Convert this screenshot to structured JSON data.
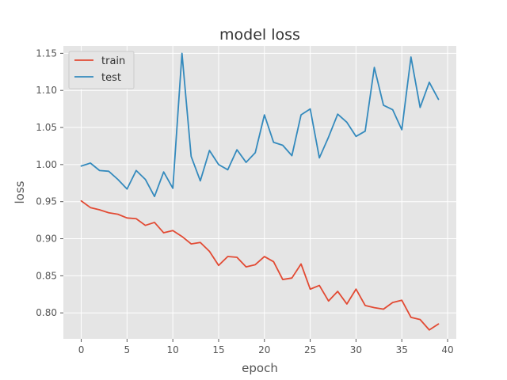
{
  "chart_data": {
    "type": "line",
    "title": "model loss",
    "xlabel": "epoch",
    "ylabel": "loss",
    "xlim": [
      -1.95,
      40.95
    ],
    "ylim": [
      0.765,
      1.16
    ],
    "xticks": [
      0,
      5,
      10,
      15,
      20,
      25,
      30,
      35,
      40
    ],
    "yticks": [
      0.8,
      0.85,
      0.9,
      0.95,
      1.0,
      1.05,
      1.1,
      1.15
    ],
    "grid": true,
    "legend_position": "top-left",
    "x": [
      0,
      1,
      2,
      3,
      4,
      5,
      6,
      7,
      8,
      9,
      10,
      11,
      12,
      13,
      14,
      15,
      16,
      17,
      18,
      19,
      20,
      21,
      22,
      23,
      24,
      25,
      26,
      27,
      28,
      29,
      30,
      31,
      32,
      33,
      34,
      35,
      36,
      37,
      38,
      39
    ],
    "series": [
      {
        "name": "train",
        "color": "#E24A33",
        "values": [
          0.951,
          0.942,
          0.939,
          0.935,
          0.933,
          0.928,
          0.927,
          0.918,
          0.922,
          0.908,
          0.911,
          0.903,
          0.893,
          0.895,
          0.883,
          0.864,
          0.876,
          0.875,
          0.862,
          0.865,
          0.876,
          0.869,
          0.845,
          0.847,
          0.866,
          0.832,
          0.837,
          0.816,
          0.829,
          0.812,
          0.832,
          0.81,
          0.807,
          0.805,
          0.814,
          0.817,
          0.794,
          0.791,
          0.777,
          0.785
        ]
      },
      {
        "name": "test",
        "color": "#348ABD",
        "values": [
          0.998,
          1.002,
          0.992,
          0.991,
          0.98,
          0.967,
          0.992,
          0.98,
          0.957,
          0.99,
          0.968,
          1.15,
          1.011,
          0.978,
          1.019,
          1.0,
          0.993,
          1.02,
          1.003,
          1.016,
          1.067,
          1.03,
          1.026,
          1.012,
          1.067,
          1.075,
          1.009,
          1.037,
          1.068,
          1.057,
          1.038,
          1.045,
          1.131,
          1.08,
          1.074,
          1.047,
          1.145,
          1.077,
          1.111,
          1.088
        ]
      }
    ]
  }
}
